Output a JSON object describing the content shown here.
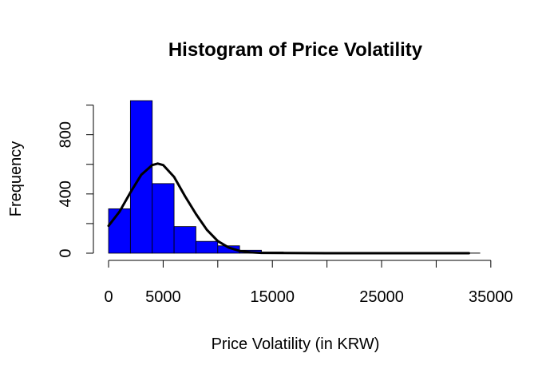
{
  "chart_data": {
    "type": "bar",
    "title": "Histogram of Price Volatility",
    "xlabel": "Price Volatility (in KRW)",
    "ylabel": "Frequency",
    "bin_width": 2000,
    "bin_starts": [
      0,
      2000,
      4000,
      6000,
      8000,
      10000,
      12000,
      14000,
      16000,
      18000,
      20000,
      22000,
      24000,
      26000,
      28000,
      30000,
      32000
    ],
    "values": [
      300,
      1030,
      470,
      180,
      80,
      50,
      20,
      8,
      4,
      2,
      1,
      1,
      1,
      1,
      1,
      1,
      1
    ],
    "bar_color": "#0000ff",
    "xticks": [
      0,
      5000,
      10000,
      15000,
      20000,
      25000,
      30000,
      35000
    ],
    "xtick_labels": [
      "0",
      "5000",
      "",
      "15000",
      "",
      "25000",
      "",
      "35000"
    ],
    "yticks": [
      0,
      200,
      400,
      600,
      800,
      1000
    ],
    "ytick_labels": [
      "0",
      "",
      "400",
      "",
      "800",
      ""
    ],
    "xlim": [
      0,
      34500
    ],
    "ylim": [
      0,
      1030
    ],
    "density_curve": {
      "color": "#000000",
      "x": [
        0,
        1000,
        2000,
        3000,
        4000,
        4500,
        5000,
        6000,
        7000,
        8000,
        9000,
        10000,
        11000,
        12000,
        13000,
        14000,
        16000,
        20000,
        25000,
        30000,
        33000
      ],
      "y": [
        185,
        280,
        410,
        530,
        595,
        605,
        595,
        515,
        385,
        265,
        158,
        82,
        38,
        15,
        6,
        2,
        1,
        0,
        0,
        0,
        0
      ]
    }
  }
}
